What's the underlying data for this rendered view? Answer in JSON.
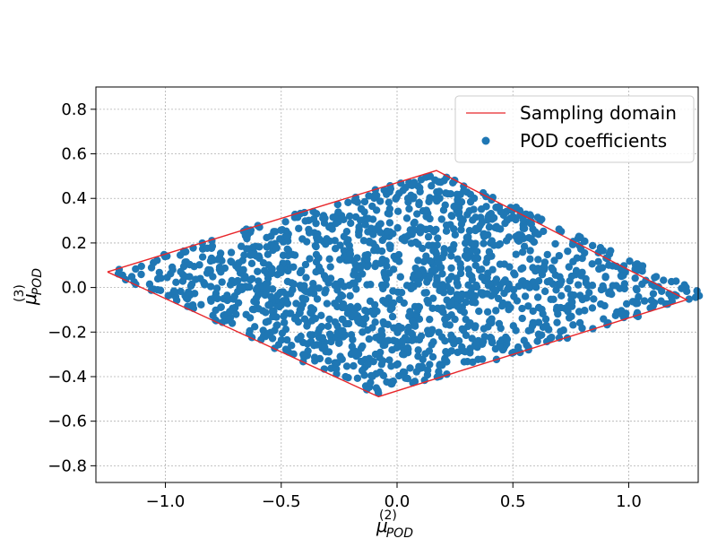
{
  "chart_data": {
    "type": "scatter",
    "title": "",
    "xlabel": {
      "base": "μ",
      "sup": "(2)",
      "sub": "POD"
    },
    "ylabel": {
      "base": "μ",
      "sup": "(3)",
      "sub": "POD"
    },
    "xlim": [
      -1.3,
      1.3
    ],
    "ylim": [
      -0.875,
      0.9
    ],
    "xticks": [
      -1.0,
      -0.5,
      0.0,
      0.5,
      1.0
    ],
    "xtick_labels": [
      "−1.0",
      "−0.5",
      "0.0",
      "0.5",
      "1.0"
    ],
    "yticks": [
      -0.8,
      -0.6,
      -0.4,
      -0.2,
      0.0,
      0.2,
      0.4,
      0.6,
      0.8
    ],
    "ytick_labels": [
      "−0.8",
      "−0.6",
      "−0.4",
      "−0.2",
      "0.0",
      "0.2",
      "0.4",
      "0.6",
      "0.8"
    ],
    "grid": true,
    "legend_position": "top-right",
    "series": [
      {
        "name": "Sampling domain",
        "kind": "line",
        "color": "#e8262a",
        "vertices": [
          [
            -1.25,
            0.07
          ],
          [
            0.17,
            0.525
          ],
          [
            1.25,
            -0.055
          ],
          [
            -0.08,
            -0.49
          ],
          [
            -1.25,
            0.07
          ]
        ]
      },
      {
        "name": "POD coefficients",
        "kind": "scatter",
        "color": "#1f77b4",
        "count": 1500,
        "distribution": "uniform within Sampling domain"
      }
    ]
  }
}
